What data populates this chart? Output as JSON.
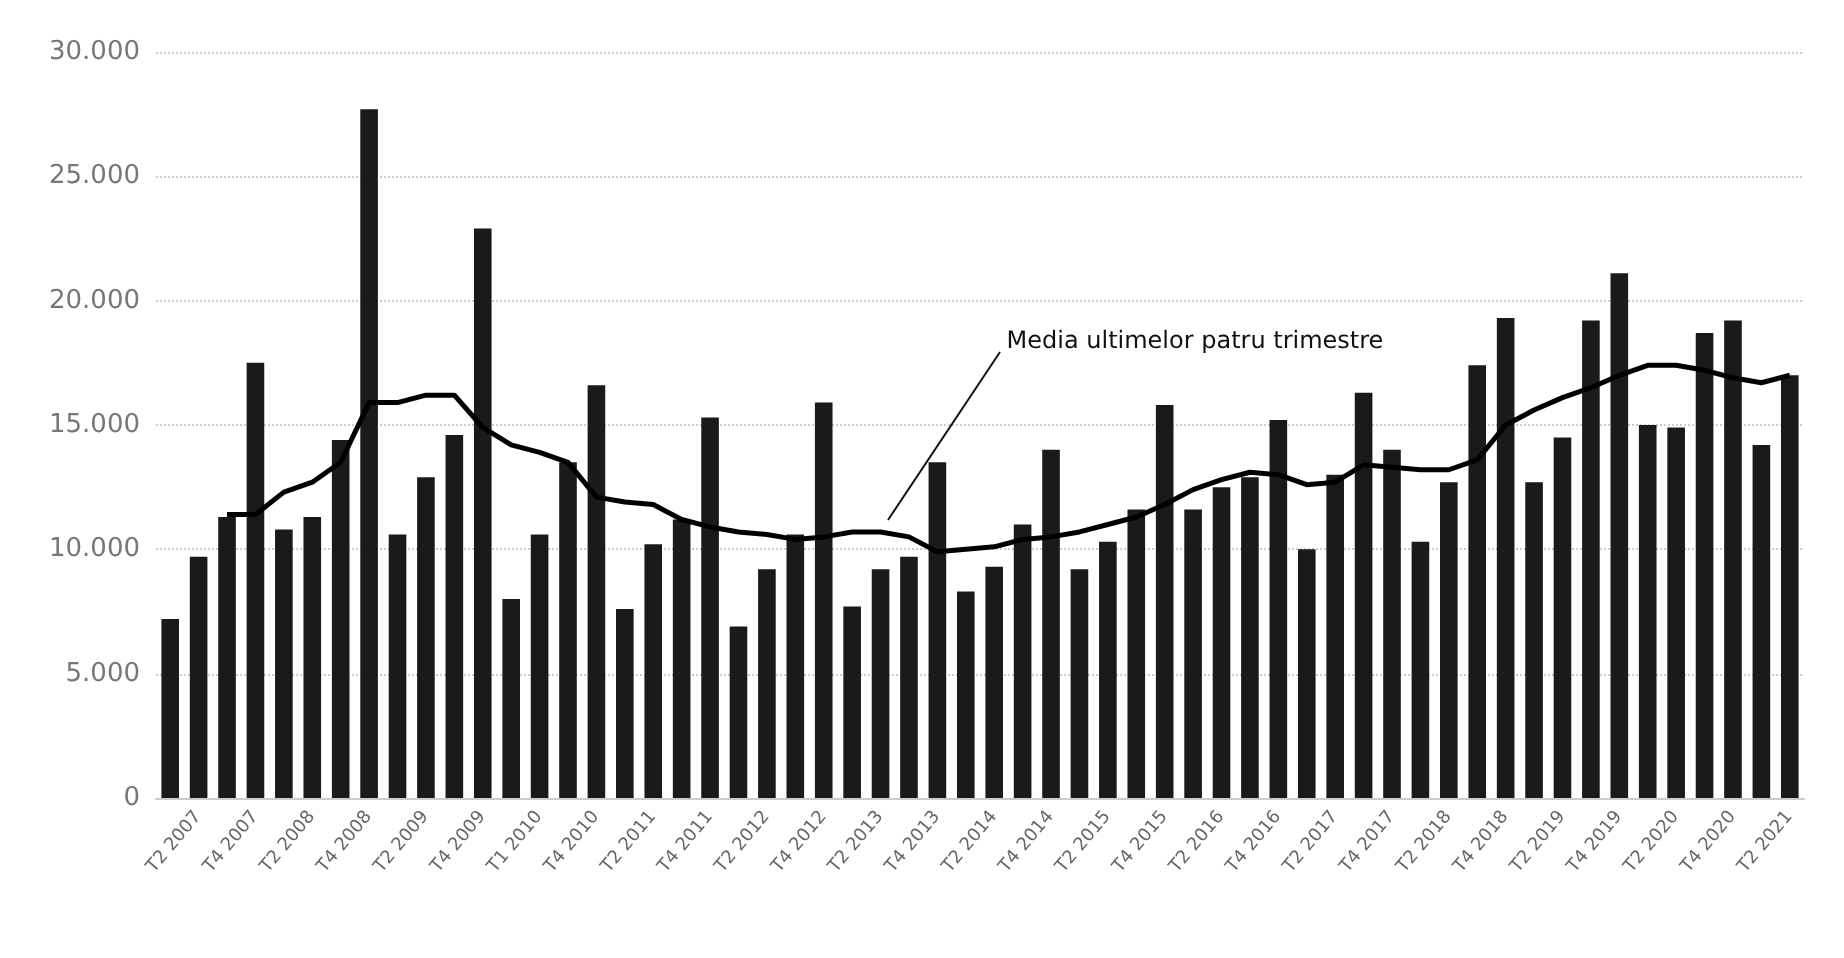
{
  "chart_data": {
    "type": "bar",
    "categories": [
      null,
      "T2 2007",
      null,
      "T4 2007",
      null,
      "T2 2008",
      null,
      "T4 2008",
      null,
      "T2 2009",
      null,
      "T4 2009",
      null,
      "T1 2010",
      null,
      "T4 2010",
      null,
      "T2 2011",
      null,
      "T4 2011",
      null,
      "T2 2012",
      null,
      "T4 2012",
      null,
      "T2 2013",
      null,
      "T4 2013",
      null,
      "T2 2014",
      null,
      "T4 2014",
      null,
      "T2 2015",
      null,
      "T4 2015",
      null,
      "T2 2016",
      null,
      "T4 2016",
      null,
      "T2 2017",
      null,
      "T4 2017",
      null,
      "T2 2018",
      null,
      "T4 2018",
      null,
      "T2 2019",
      null,
      "T4 2019",
      null,
      "T2 2020",
      null,
      "T4 2020",
      null,
      "T2 2021"
    ],
    "series": [
      {
        "color": "#1a1a1a",
        "values": [
          7200,
          9700,
          11300,
          17500,
          10800,
          11300,
          14400,
          27700,
          10600,
          12900,
          14600,
          22900,
          8000,
          10600,
          13500,
          16600,
          7600,
          10200,
          11200,
          15300,
          6900,
          9200,
          10600,
          15900,
          7700,
          9200,
          9700,
          13500,
          8300,
          9300,
          11000,
          14000,
          9200,
          10300,
          11600,
          15800,
          11600,
          12500,
          12900,
          15200,
          10000,
          13000,
          16300,
          14000,
          10300,
          12700,
          17400,
          19300,
          12700,
          14500,
          19200,
          21100,
          15000,
          14900,
          18700,
          19200,
          14200,
          17000
        ]
      },
      {
        "type": "line",
        "color": "#000000",
        "values": [
          null,
          null,
          11400,
          11400,
          12300,
          12700,
          13500,
          15900,
          15900,
          16200,
          16200,
          14900,
          14200,
          13900,
          13500,
          12100,
          11900,
          11800,
          11200,
          10900,
          10700,
          10600,
          10400,
          10500,
          10700,
          10700,
          10500,
          9900,
          10000,
          10100,
          10400,
          10500,
          10700,
          11000,
          11300,
          11800,
          12400,
          12800,
          13100,
          13000,
          12600,
          12700,
          13400,
          13300,
          13200,
          13200,
          13600,
          15000,
          15600,
          16100,
          16500,
          17000,
          17400,
          17400,
          17200,
          16900,
          16700,
          17000
        ]
      }
    ],
    "ylim": [
      0,
      30000
    ],
    "yticks": [
      {
        "value": 0,
        "label": "0"
      },
      {
        "value": 5000,
        "label": "5.000"
      },
      {
        "value": 10000,
        "label": "10.000"
      },
      {
        "value": 15000,
        "label": "15.000"
      },
      {
        "value": 20000,
        "label": "20.000"
      },
      {
        "value": 25000,
        "label": "25.000"
      },
      {
        "value": 30000,
        "label": "30.000"
      }
    ],
    "grid": "y",
    "annotations": [
      {
        "text": "Media ultimelor patru trimestre",
        "x": "T2 2013",
        "y": 10700
      }
    ]
  }
}
